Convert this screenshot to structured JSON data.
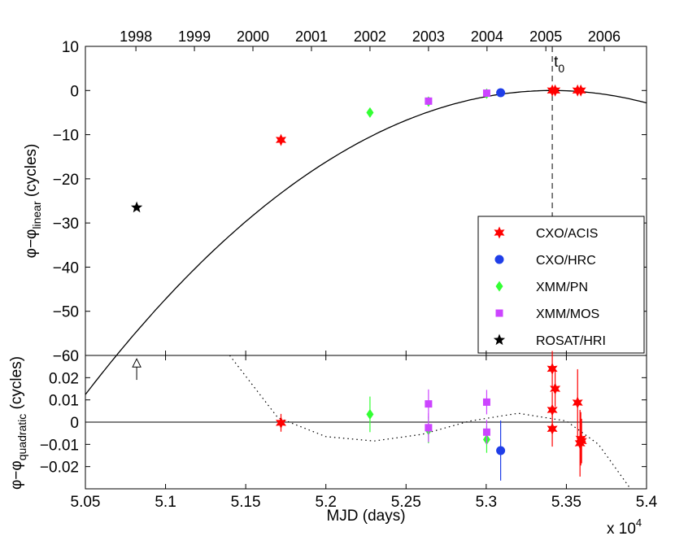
{
  "chart_data": {
    "type": "scatter",
    "x_axis": {
      "label": "MJD (days)",
      "range": [
        50500,
        54000
      ],
      "ticks": [
        50500,
        51000,
        51500,
        52000,
        52500,
        53000,
        53500,
        54000
      ],
      "tick_labels": [
        "5.05",
        "5.1",
        "5.15",
        "5.2",
        "5.25",
        "5.3",
        "5.35",
        "5.4"
      ],
      "multiplier": "x 10",
      "multiplier_exp": "4"
    },
    "year_axis": {
      "labels": [
        "1998",
        "1999",
        "2000",
        "2001",
        "2002",
        "2003",
        "2004",
        "2005",
        "2006"
      ],
      "positions_mjd": [
        50815,
        51180,
        51545,
        51910,
        52275,
        52640,
        53005,
        53372,
        53736
      ]
    },
    "reference": {
      "label": "t",
      "sub": "0",
      "mjd": 53412
    },
    "top_panel": {
      "ylabel": {
        "main": "φ−φ",
        "sub": "linear",
        "unit": " (cycles)"
      },
      "ylim": [
        -60,
        10
      ],
      "yticks": [
        10,
        0,
        -10,
        -20,
        -30,
        -40,
        -50,
        -60
      ],
      "ytick_labels": [
        "10",
        "0",
        "−10",
        "−20",
        "−30",
        "−40",
        "−50",
        "−60"
      ],
      "model_curve": {
        "type": "quadratic",
        "t0": 53412,
        "peak": 0,
        "coef_per_day2": -8.12e-06
      },
      "series": [
        {
          "name": "CXO/ACIS",
          "marker": "hexstar",
          "color": "#ff0000",
          "x": [
            51720,
            53412,
            53430,
            53570,
            53590
          ],
          "y": [
            -11.2,
            0,
            0,
            0,
            0
          ]
        },
        {
          "name": "CXO/HRC",
          "marker": "circle",
          "color": "#1f3ee8",
          "x": [
            53090
          ],
          "y": [
            -0.5
          ]
        },
        {
          "name": "XMM/PN",
          "marker": "diamond",
          "color": "#33ff33",
          "x": [
            52275,
            52640,
            53003
          ],
          "y": [
            -5.0,
            -2.5,
            -0.7
          ]
        },
        {
          "name": "XMM/MOS",
          "marker": "square",
          "color": "#cc44ff",
          "x": [
            52640,
            53003
          ],
          "y": [
            -2.4,
            -0.6
          ]
        },
        {
          "name": "ROSAT/HRI",
          "marker": "star",
          "color": "#000000",
          "x": [
            50820
          ],
          "y": [
            -26.5
          ]
        }
      ],
      "legend": [
        "CXO/ACIS",
        "CXO/HRC",
        "XMM/PN",
        "XMM/MOS",
        "ROSAT/HRI"
      ],
      "legend_position": "lower-right"
    },
    "bottom_panel": {
      "ylabel": {
        "main": "φ−φ",
        "sub": "quadratic",
        "unit": " (cycles)"
      },
      "ylim": [
        -0.03,
        0.03
      ],
      "yticks": [
        0.02,
        0.01,
        0,
        -0.01,
        -0.02
      ],
      "ytick_labels": [
        "0.02",
        "0.01",
        "0",
        "−0.01",
        "−0.02"
      ],
      "zero_line": true,
      "upper_limit_arrow": {
        "series": "ROSAT/HRI",
        "x": 50820,
        "y_from": 0.019,
        "y_to": 0.027
      },
      "cubic_residual_curve": {
        "style": "dotted",
        "points": [
          [
            51400,
            0.03
          ],
          [
            51700,
            0.002
          ],
          [
            52000,
            -0.0065
          ],
          [
            52300,
            -0.0085
          ],
          [
            52600,
            -0.0055
          ],
          [
            52900,
            0.0005
          ],
          [
            53200,
            0.004
          ],
          [
            53500,
            0.0005
          ],
          [
            53700,
            -0.01
          ],
          [
            53900,
            -0.03
          ]
        ]
      },
      "series": [
        {
          "name": "CXO/ACIS",
          "x": [
            51720,
            53412,
            53412,
            53430,
            53412,
            53570,
            53585,
            53590,
            53595
          ],
          "y": [
            -0.0003,
            0.024,
            0.0055,
            0.015,
            -0.003,
            0.0088,
            -0.0095,
            -0.0075,
            -0.0085
          ],
          "err": [
            0.004,
            0.008,
            0.008,
            0.008,
            0.008,
            0.015,
            0.015,
            0.012,
            0.01
          ]
        },
        {
          "name": "CXO/HRC",
          "x": [
            53090
          ],
          "y": [
            -0.0128
          ],
          "err": [
            0.0135
          ]
        },
        {
          "name": "XMM/PN",
          "x": [
            52275,
            52640,
            53003
          ],
          "y": [
            0.0035,
            -0.0035,
            -0.0078
          ],
          "err": [
            0.008,
            0.006,
            0.006
          ]
        },
        {
          "name": "XMM/MOS",
          "x": [
            52640,
            52640,
            53003,
            53003
          ],
          "y": [
            0.0082,
            -0.0025,
            0.009,
            -0.0045
          ],
          "err": [
            0.0065,
            0.0065,
            0.0055,
            0.0055
          ]
        }
      ]
    }
  }
}
